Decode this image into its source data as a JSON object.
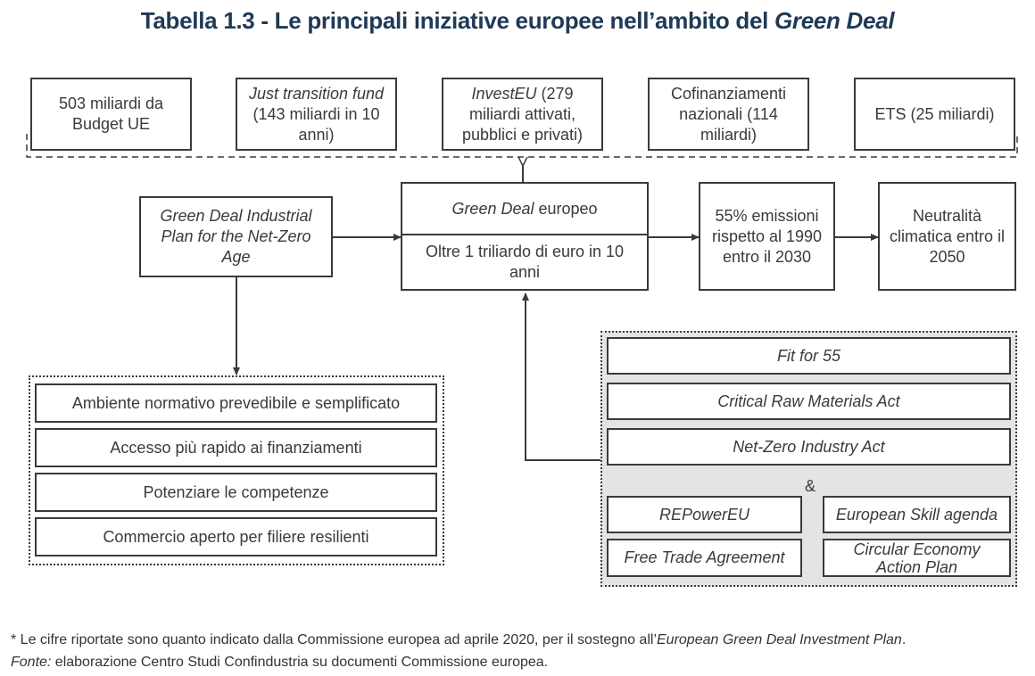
{
  "title": {
    "prefix": "Tabella 1.3 - Le principali iniziative europee nell’ambito del ",
    "italic": "Green Deal"
  },
  "funding_sources": [
    {
      "pre": "",
      "italic": "",
      "text": "503 miliardi da Budget UE"
    },
    {
      "pre": "",
      "italic": "Just transition fund",
      "text": " (143 miliardi in 10 anni)"
    },
    {
      "pre": "",
      "italic": "InvestEU",
      "text": " (279 miliardi attivati, pubblici e privati)"
    },
    {
      "pre": "",
      "italic": "",
      "text": "Cofinanziamenti nazionali (114 miliardi)"
    },
    {
      "pre": "",
      "italic": "",
      "text": "ETS (25 miliardi)"
    }
  ],
  "industrial_plan": "Green Deal Industrial Plan for the Net-Zero Age",
  "green_deal": {
    "italic": "Green Deal",
    "label": " europeo",
    "amount": "Oltre 1 triliardo di euro in 10 anni"
  },
  "targets": [
    "55% emissioni rispetto al 1990 entro il 2030",
    "Neutralità climatica entro il 2050"
  ],
  "plan_pillars": [
    "Ambiente normativo prevedibile e semplificato",
    "Accesso più rapido ai finanziamenti",
    "Potenziare le competenze",
    "Commercio aperto per filiere resilienti"
  ],
  "policies": {
    "main": [
      "Fit for 55",
      "Critical Raw Materials Act",
      "Net-Zero Industry Act"
    ],
    "ampersand": "&",
    "secondary": [
      "REPowerEU",
      "European Skill agenda",
      "Free Trade Agreement",
      "Circular Economy Action Plan"
    ]
  },
  "footnote": {
    "note": "* Le cifre riportate sono quanto indicato dalla Commissione europea ad aprile 2020, per il sostegno all’",
    "note_italic": "European Green Deal Investment Plan",
    "note_end": ".",
    "source_label": "Fonte:",
    "source_text": " elaborazione Centro Studi Confindustria su documenti Commissione europea."
  },
  "colors": {
    "title": "#1f3a56",
    "border": "#3a3a3a",
    "panel": "#e4e4e4"
  }
}
